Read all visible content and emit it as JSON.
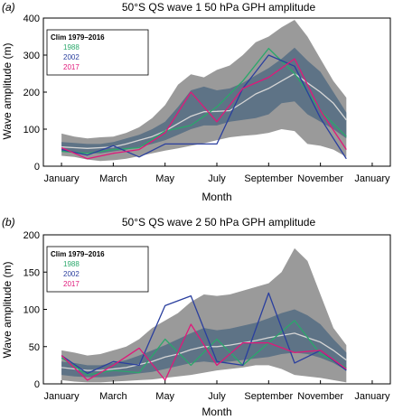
{
  "chart_data": [
    {
      "type": "line",
      "panel_label": "(a)",
      "title": "50°S QS wave 1 50 hPa GPH amplitude",
      "xlabel": "Month",
      "ylabel": "Wave amplitude (m)",
      "x_ticks": [
        "January",
        "March",
        "May",
        "July",
        "September",
        "November",
        "January"
      ],
      "x_tick_positions": [
        1,
        3,
        5,
        7,
        9,
        11,
        13
      ],
      "xlim": [
        0.3,
        13.7
      ],
      "ylim": [
        0,
        400
      ],
      "y_ticks": [
        0,
        100,
        200,
        300,
        400
      ],
      "legend_title": "Clim 1979–2016",
      "legend_position": "top-left",
      "colors": {
        "band_outer": "#9a9a9a",
        "band_inner": "#5e7386",
        "clim": "#d6d6d6"
      },
      "x": [
        1,
        1.5,
        2,
        2.5,
        3,
        3.5,
        4,
        4.5,
        5,
        5.5,
        6,
        6.5,
        7,
        7.5,
        8,
        8.5,
        9,
        9.5,
        10,
        10.5,
        11,
        11.5,
        12
      ],
      "outer_band": {
        "lower": [
          28,
          25,
          18,
          14,
          16,
          20,
          27,
          35,
          42,
          48,
          55,
          62,
          70,
          78,
          82,
          85,
          90,
          100,
          95,
          60,
          55,
          45,
          25
        ],
        "upper": [
          88,
          80,
          75,
          78,
          80,
          90,
          105,
          130,
          165,
          220,
          248,
          240,
          260,
          272,
          300,
          335,
          350,
          375,
          395,
          350,
          290,
          230,
          185
        ]
      },
      "inner_band": {
        "lower": [
          40,
          38,
          35,
          35,
          40,
          45,
          52,
          60,
          70,
          85,
          100,
          110,
          110,
          120,
          125,
          130,
          140,
          170,
          175,
          140,
          120,
          100,
          75
        ],
        "upper": [
          65,
          63,
          60,
          60,
          65,
          75,
          85,
          100,
          120,
          160,
          205,
          215,
          205,
          210,
          225,
          245,
          265,
          290,
          320,
          285,
          255,
          200,
          145
        ]
      },
      "clim": [
        52,
        50,
        48,
        50,
        52,
        60,
        70,
        80,
        95,
        115,
        135,
        147,
        148,
        150,
        172,
        195,
        210,
        230,
        250,
        225,
        200,
        170,
        125
      ],
      "series": [
        {
          "name": "1988",
          "color": "#2aa86b",
          "x": [
            1,
            2,
            3,
            4,
            5,
            6,
            7,
            8,
            9,
            10,
            11,
            12
          ],
          "values": [
            40,
            35,
            45,
            50,
            95,
            110,
            160,
            230,
            318,
            250,
            150,
            80
          ]
        },
        {
          "name": "2002",
          "color": "#2a3f9e",
          "x": [
            1,
            2,
            3,
            4,
            5,
            6,
            7,
            8,
            9,
            10,
            11,
            12
          ],
          "values": [
            45,
            30,
            55,
            25,
            60,
            60,
            60,
            210,
            300,
            270,
            130,
            20
          ]
        },
        {
          "name": "2017",
          "color": "#e0187a",
          "x": [
            1,
            2,
            3,
            4,
            5,
            6,
            7,
            8,
            9,
            10,
            11,
            12
          ],
          "values": [
            50,
            20,
            35,
            45,
            90,
            200,
            120,
            210,
            240,
            290,
            150,
            45
          ]
        }
      ]
    },
    {
      "type": "line",
      "panel_label": "(b)",
      "title": "50°S QS wave 2 50 hPa GPH amplitude",
      "xlabel": "Month",
      "ylabel": "Wave amplitude (m)",
      "x_ticks": [
        "January",
        "March",
        "May",
        "July",
        "September",
        "November",
        "January"
      ],
      "x_tick_positions": [
        1,
        3,
        5,
        7,
        9,
        11,
        13
      ],
      "xlim": [
        0.3,
        13.7
      ],
      "ylim": [
        0,
        200
      ],
      "y_ticks": [
        0,
        50,
        100,
        150,
        200
      ],
      "legend_title": "Clim 1979–2016",
      "legend_position": "top-left",
      "colors": {
        "band_outer": "#9a9a9a",
        "band_inner": "#5e7386",
        "clim": "#d6d6d6"
      },
      "x": [
        1,
        1.5,
        2,
        2.5,
        3,
        3.5,
        4,
        4.5,
        5,
        5.5,
        6,
        6.5,
        7,
        7.5,
        8,
        8.5,
        9,
        9.5,
        10,
        10.5,
        11,
        11.5,
        12
      ],
      "outer_band": {
        "lower": [
          5,
          3,
          2,
          2,
          3,
          4,
          5,
          6,
          8,
          10,
          12,
          15,
          18,
          20,
          22,
          25,
          25,
          20,
          12,
          10,
          8,
          5,
          2
        ],
        "upper": [
          45,
          42,
          38,
          40,
          45,
          50,
          60,
          75,
          85,
          95,
          110,
          120,
          118,
          120,
          125,
          130,
          135,
          150,
          182,
          165,
          120,
          75,
          52
        ]
      },
      "inner_band": {
        "lower": [
          12,
          10,
          9,
          9,
          10,
          12,
          14,
          16,
          20,
          24,
          28,
          30,
          28,
          30,
          32,
          34,
          36,
          40,
          42,
          40,
          35,
          28,
          18
        ],
        "upper": [
          30,
          28,
          25,
          25,
          28,
          32,
          38,
          45,
          52,
          60,
          68,
          75,
          72,
          74,
          78,
          82,
          88,
          95,
          100,
          92,
          80,
          60,
          42
        ]
      },
      "clim": [
        22,
        20,
        18,
        18,
        20,
        22,
        26,
        30,
        36,
        40,
        46,
        50,
        50,
        52,
        55,
        58,
        62,
        65,
        68,
        62,
        56,
        45,
        32
      ],
      "series": [
        {
          "name": "1988",
          "color": "#2aa86b",
          "x": [
            1,
            2,
            3,
            4,
            5,
            6,
            7,
            8,
            9,
            10,
            11,
            12
          ],
          "values": [
            35,
            12,
            18,
            15,
            60,
            25,
            60,
            25,
            55,
            85,
            40,
            22
          ]
        },
        {
          "name": "2002",
          "color": "#2a3f9e",
          "x": [
            1,
            2,
            3,
            4,
            5,
            6,
            7,
            8,
            9,
            10,
            11,
            12
          ],
          "values": [
            38,
            14,
            30,
            25,
            105,
            118,
            30,
            25,
            122,
            28,
            45,
            18
          ]
        },
        {
          "name": "2017",
          "color": "#e0187a",
          "x": [
            1,
            2,
            3,
            4,
            5,
            6,
            7,
            8,
            9,
            10,
            11,
            12
          ],
          "values": [
            38,
            5,
            25,
            48,
            5,
            80,
            25,
            55,
            55,
            42,
            45,
            20
          ]
        }
      ]
    }
  ]
}
